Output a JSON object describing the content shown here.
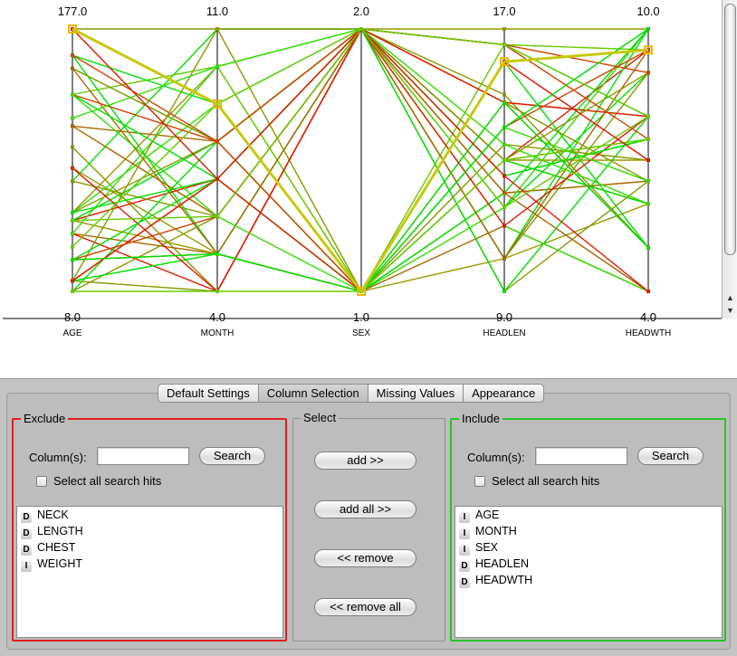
{
  "plot": {
    "axes": [
      {
        "name": "AGE",
        "max_label": "177.0",
        "min_label": "8.0"
      },
      {
        "name": "MONTH",
        "max_label": "11.0",
        "min_label": "4.0"
      },
      {
        "name": "SEX",
        "max_label": "2.0",
        "min_label": "1.0"
      },
      {
        "name": "HEADLEN",
        "max_label": "17.0",
        "min_label": "9.0"
      },
      {
        "name": "HEADWTH",
        "max_label": "10.0",
        "min_label": "4.0"
      }
    ],
    "highlight_color": "#c8c810",
    "highlighted_marker_color": "#e8b800",
    "line_colors": [
      "#00e000",
      "#33dd00",
      "#66cc00",
      "#889900",
      "#999900",
      "#aa6600",
      "#cc4400",
      "#e01a00"
    ]
  },
  "tabs": [
    {
      "label": "Default Settings",
      "active": false
    },
    {
      "label": "Column Selection",
      "active": true
    },
    {
      "label": "Missing Values",
      "active": false
    },
    {
      "label": "Appearance",
      "active": false
    }
  ],
  "exclude": {
    "title": "Exclude",
    "columns_label": "Column(s):",
    "search_value": "",
    "search_button": "Search",
    "select_all_label": "Select all search hits",
    "items": [
      {
        "type": "D",
        "label": "NECK"
      },
      {
        "type": "D",
        "label": "LENGTH"
      },
      {
        "type": "D",
        "label": "CHEST"
      },
      {
        "type": "I",
        "label": "WEIGHT"
      }
    ]
  },
  "select": {
    "title": "Select",
    "add": "add >>",
    "add_all": "add all >>",
    "remove": "<< remove",
    "remove_all": "<< remove all"
  },
  "include": {
    "title": "Include",
    "columns_label": "Column(s):",
    "search_value": "",
    "search_button": "Search",
    "select_all_label": "Select all search hits",
    "items": [
      {
        "type": "I",
        "label": "AGE"
      },
      {
        "type": "I",
        "label": "MONTH"
      },
      {
        "type": "I",
        "label": "SEX"
      },
      {
        "type": "D",
        "label": "HEADLEN"
      },
      {
        "type": "D",
        "label": "HEADWTH"
      }
    ]
  }
}
